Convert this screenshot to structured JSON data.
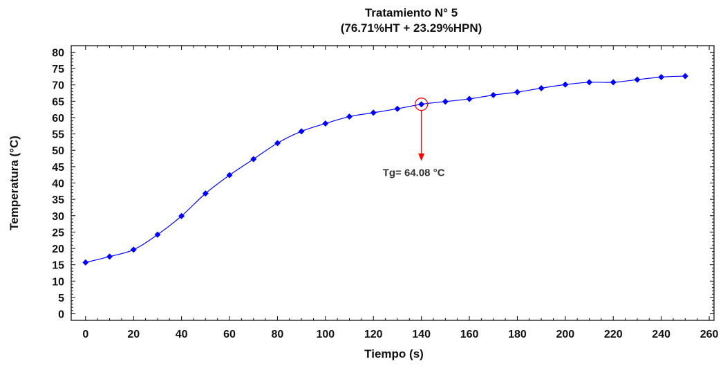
{
  "chart_data": {
    "type": "line",
    "title": "Tratamiento N° 5",
    "subtitle": "(76.71%HT + 23.29%HPN)",
    "xlabel": "Tiempo (s)",
    "ylabel": "Temperatura (°C)",
    "xlim": [
      -6,
      262
    ],
    "ylim": [
      -2,
      82
    ],
    "xticks": [
      0,
      20,
      40,
      60,
      80,
      100,
      120,
      140,
      160,
      180,
      200,
      220,
      240,
      260
    ],
    "yticks": [
      0,
      5,
      10,
      15,
      20,
      25,
      30,
      35,
      40,
      45,
      50,
      55,
      60,
      65,
      70,
      75,
      80
    ],
    "grid": false,
    "series": [
      {
        "color": "#0000ff",
        "marker": "diamond",
        "x": [
          0,
          10,
          20,
          30,
          40,
          50,
          60,
          70,
          80,
          90,
          100,
          110,
          120,
          130,
          140,
          150,
          160,
          170,
          180,
          190,
          200,
          210,
          220,
          230,
          240,
          250
        ],
        "y": [
          15.7,
          17.5,
          19.6,
          24.2,
          29.9,
          36.8,
          42.4,
          47.3,
          52.2,
          55.8,
          58.2,
          60.3,
          61.5,
          62.7,
          64.08,
          64.9,
          65.7,
          66.9,
          67.8,
          69.0,
          70.1,
          70.8,
          70.8,
          71.6,
          72.4,
          72.7
        ]
      }
    ],
    "annotation": {
      "text": "Tg= 64.08 °C",
      "x": 140,
      "y": 64.08,
      "color": "#ff0000"
    }
  }
}
